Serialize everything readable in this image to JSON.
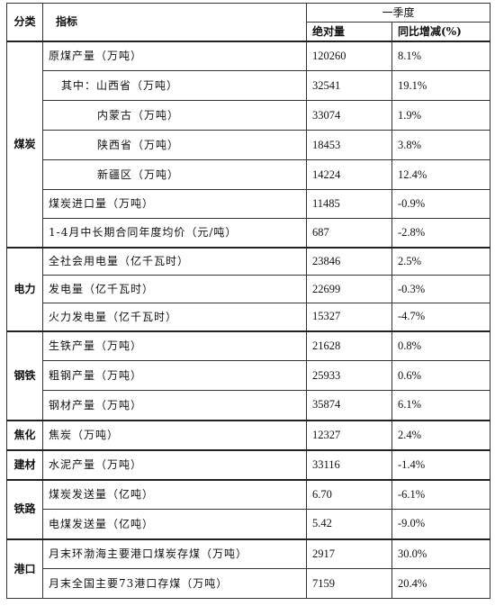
{
  "header": {
    "category": "分类",
    "indicator": "指标",
    "quarter": "一季度",
    "absolute": "绝对量",
    "yoy": "同比增减(%)"
  },
  "rows": [
    {
      "indicator": "原煤产量（万吨）",
      "value": "120260",
      "yoy": "8.1%"
    },
    {
      "indicator": "其中：山西省（万吨）",
      "value": "32541",
      "yoy": "19.1%"
    },
    {
      "indicator": "内蒙古（万吨）",
      "value": "33074",
      "yoy": "1.9%"
    },
    {
      "indicator": "陕西省（万吨）",
      "value": "18453",
      "yoy": "3.8%"
    },
    {
      "indicator": "新疆区（万吨）",
      "value": "14224",
      "yoy": "12.4%"
    },
    {
      "indicator": "煤炭进口量（万吨）",
      "value": "11485",
      "yoy": "-0.9%"
    },
    {
      "indicator": "1-4月中长期合同年度均价（元/吨）",
      "value": "687",
      "yoy": "-2.8%"
    },
    {
      "indicator": "全社会用电量（亿千瓦时）",
      "value": "23846",
      "yoy": "2.5%"
    },
    {
      "indicator": "发电量（亿千瓦时）",
      "value": "22699",
      "yoy": "-0.3%"
    },
    {
      "indicator": "火力发电量（亿千瓦时）",
      "value": "15327",
      "yoy": "-4.7%"
    },
    {
      "indicator": "生铁产量（万吨）",
      "value": "21628",
      "yoy": "0.8%"
    },
    {
      "indicator": "粗钢产量（万吨）",
      "value": "25933",
      "yoy": "0.6%"
    },
    {
      "indicator": "钢材产量（万吨）",
      "value": "35874",
      "yoy": "6.1%"
    },
    {
      "indicator": "焦炭（万吨）",
      "value": "12327",
      "yoy": "2.4%"
    },
    {
      "indicator": "水泥产量（万吨）",
      "value": "33116",
      "yoy": "-1.4%"
    },
    {
      "indicator": "煤炭发送量（亿吨）",
      "value": "6.70",
      "yoy": "-6.1%"
    },
    {
      "indicator": "电煤发送量（亿吨）",
      "value": "5.42",
      "yoy": "-9.0%"
    },
    {
      "indicator": "月末环渤海主要港口煤炭存煤（万吨）",
      "value": "2917",
      "yoy": "30.0%"
    },
    {
      "indicator": "月末全国主要73港口存煤（万吨）",
      "value": "7159",
      "yoy": "20.4%"
    }
  ],
  "categories": {
    "coal": "煤炭",
    "power": "电力",
    "steel": "钢铁",
    "coking": "焦化",
    "cement": "建材",
    "rail": "铁路",
    "port": "港口"
  }
}
